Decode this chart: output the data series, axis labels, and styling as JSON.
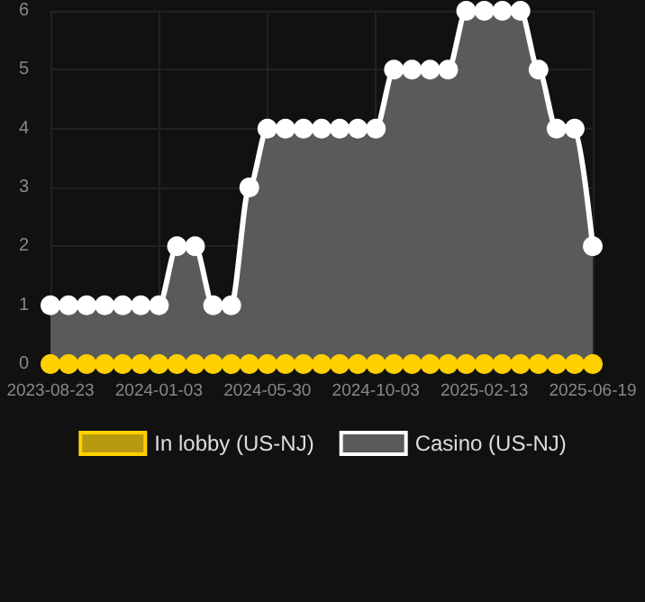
{
  "chart_data": {
    "type": "area",
    "categories": [
      "2023-08-23",
      null,
      null,
      null,
      null,
      null,
      "2024-01-03",
      null,
      null,
      null,
      null,
      null,
      "2024-05-30",
      null,
      null,
      null,
      null,
      null,
      "2024-10-03",
      null,
      null,
      null,
      null,
      null,
      "2025-02-13",
      null,
      null,
      null,
      null,
      null,
      "2025-06-19"
    ],
    "series": [
      {
        "name": "In lobby (US-NJ)",
        "type": "line",
        "color": "#ffd000",
        "values": [
          0,
          0,
          0,
          0,
          0,
          0,
          0,
          0,
          0,
          0,
          0,
          0,
          0,
          0,
          0,
          0,
          0,
          0,
          0,
          0,
          0,
          0,
          0,
          0,
          0,
          0,
          0,
          0,
          0,
          0,
          0
        ]
      },
      {
        "name": "Casino (US-NJ)",
        "color": "#ffffff",
        "values": [
          1,
          1,
          1,
          1,
          1,
          1,
          1,
          2,
          2,
          1,
          1,
          3,
          4,
          4,
          4,
          4,
          4,
          4,
          4,
          5,
          5,
          5,
          5,
          6,
          6,
          6,
          6,
          5,
          4,
          4,
          2
        ]
      }
    ],
    "ylim": [
      0,
      6
    ],
    "yticks": [
      0,
      1,
      2,
      3,
      4,
      5,
      6
    ],
    "grid": true,
    "legend": "bottom",
    "marker": "circle"
  }
}
